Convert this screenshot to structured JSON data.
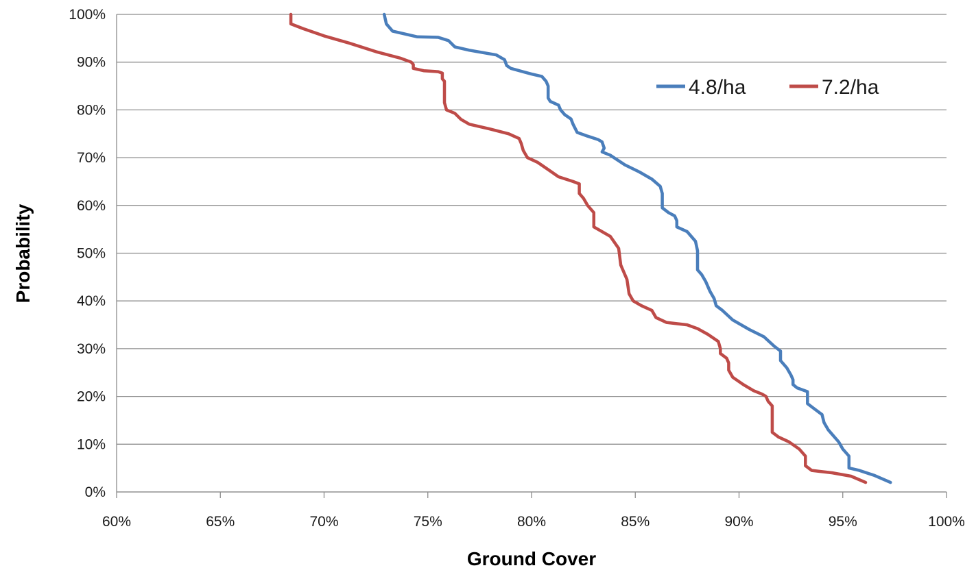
{
  "chart_data": {
    "type": "line",
    "title": "",
    "xlabel": "Ground Cover",
    "ylabel": "Probability",
    "xlim": [
      0.6,
      1.0
    ],
    "ylim": [
      0,
      1.0
    ],
    "x_ticks": [
      0.6,
      0.65,
      0.7,
      0.75,
      0.8,
      0.85,
      0.9,
      0.95,
      1.0
    ],
    "x_tick_labels": [
      "60%",
      "65%",
      "70%",
      "75%",
      "80%",
      "85%",
      "90%",
      "95%",
      "100%"
    ],
    "y_ticks": [
      0,
      0.1,
      0.2,
      0.3,
      0.4,
      0.5,
      0.6,
      0.7,
      0.8,
      0.9,
      1.0
    ],
    "y_tick_labels": [
      "0%",
      "10%",
      "20%",
      "30%",
      "40%",
      "50%",
      "60%",
      "70%",
      "80%",
      "90%",
      "100%"
    ],
    "grid": "horizontal",
    "legend": "top-right",
    "series": [
      {
        "name": "4.8/ha",
        "color": "#4a7ebb",
        "points": [
          [
            0.729,
            1.0
          ],
          [
            0.73,
            0.98
          ],
          [
            0.733,
            0.965
          ],
          [
            0.745,
            0.953
          ],
          [
            0.755,
            0.952
          ],
          [
            0.76,
            0.945
          ],
          [
            0.763,
            0.932
          ],
          [
            0.77,
            0.925
          ],
          [
            0.783,
            0.915
          ],
          [
            0.787,
            0.905
          ],
          [
            0.788,
            0.893
          ],
          [
            0.79,
            0.887
          ],
          [
            0.8,
            0.875
          ],
          [
            0.805,
            0.87
          ],
          [
            0.807,
            0.86
          ],
          [
            0.808,
            0.85
          ],
          [
            0.808,
            0.825
          ],
          [
            0.809,
            0.818
          ],
          [
            0.813,
            0.81
          ],
          [
            0.814,
            0.8
          ],
          [
            0.816,
            0.79
          ],
          [
            0.819,
            0.781
          ],
          [
            0.82,
            0.77
          ],
          [
            0.822,
            0.753
          ],
          [
            0.827,
            0.745
          ],
          [
            0.832,
            0.738
          ],
          [
            0.834,
            0.733
          ],
          [
            0.835,
            0.72
          ],
          [
            0.834,
            0.712
          ],
          [
            0.838,
            0.705
          ],
          [
            0.845,
            0.685
          ],
          [
            0.852,
            0.67
          ],
          [
            0.858,
            0.655
          ],
          [
            0.862,
            0.64
          ],
          [
            0.863,
            0.625
          ],
          [
            0.863,
            0.595
          ],
          [
            0.866,
            0.585
          ],
          [
            0.869,
            0.578
          ],
          [
            0.87,
            0.568
          ],
          [
            0.87,
            0.555
          ],
          [
            0.875,
            0.545
          ],
          [
            0.879,
            0.525
          ],
          [
            0.88,
            0.505
          ],
          [
            0.88,
            0.465
          ],
          [
            0.882,
            0.455
          ],
          [
            0.884,
            0.44
          ],
          [
            0.886,
            0.42
          ],
          [
            0.888,
            0.405
          ],
          [
            0.889,
            0.39
          ],
          [
            0.892,
            0.38
          ],
          [
            0.897,
            0.36
          ],
          [
            0.905,
            0.34
          ],
          [
            0.912,
            0.325
          ],
          [
            0.917,
            0.305
          ],
          [
            0.92,
            0.295
          ],
          [
            0.92,
            0.275
          ],
          [
            0.923,
            0.26
          ],
          [
            0.925,
            0.245
          ],
          [
            0.926,
            0.235
          ],
          [
            0.926,
            0.225
          ],
          [
            0.928,
            0.218
          ],
          [
            0.933,
            0.21
          ],
          [
            0.933,
            0.185
          ],
          [
            0.936,
            0.175
          ],
          [
            0.94,
            0.162
          ],
          [
            0.941,
            0.145
          ],
          [
            0.943,
            0.13
          ],
          [
            0.946,
            0.115
          ],
          [
            0.948,
            0.105
          ],
          [
            0.95,
            0.09
          ],
          [
            0.953,
            0.075
          ],
          [
            0.953,
            0.05
          ],
          [
            0.958,
            0.045
          ],
          [
            0.965,
            0.035
          ],
          [
            0.973,
            0.02
          ]
        ]
      },
      {
        "name": "7.2/ha",
        "color": "#be4b48",
        "points": [
          [
            0.684,
            1.0
          ],
          [
            0.684,
            0.98
          ],
          [
            0.69,
            0.97
          ],
          [
            0.7,
            0.955
          ],
          [
            0.712,
            0.94
          ],
          [
            0.725,
            0.922
          ],
          [
            0.737,
            0.908
          ],
          [
            0.742,
            0.9
          ],
          [
            0.743,
            0.895
          ],
          [
            0.743,
            0.887
          ],
          [
            0.748,
            0.882
          ],
          [
            0.755,
            0.88
          ],
          [
            0.757,
            0.877
          ],
          [
            0.757,
            0.865
          ],
          [
            0.758,
            0.86
          ],
          [
            0.758,
            0.815
          ],
          [
            0.759,
            0.8
          ],
          [
            0.763,
            0.793
          ],
          [
            0.766,
            0.78
          ],
          [
            0.77,
            0.77
          ],
          [
            0.78,
            0.76
          ],
          [
            0.789,
            0.75
          ],
          [
            0.794,
            0.74
          ],
          [
            0.795,
            0.73
          ],
          [
            0.796,
            0.715
          ],
          [
            0.798,
            0.7
          ],
          [
            0.803,
            0.69
          ],
          [
            0.808,
            0.675
          ],
          [
            0.813,
            0.66
          ],
          [
            0.82,
            0.65
          ],
          [
            0.823,
            0.645
          ],
          [
            0.823,
            0.625
          ],
          [
            0.825,
            0.615
          ],
          [
            0.827,
            0.6
          ],
          [
            0.83,
            0.585
          ],
          [
            0.83,
            0.555
          ],
          [
            0.834,
            0.545
          ],
          [
            0.838,
            0.535
          ],
          [
            0.842,
            0.51
          ],
          [
            0.843,
            0.475
          ],
          [
            0.845,
            0.455
          ],
          [
            0.846,
            0.445
          ],
          [
            0.847,
            0.415
          ],
          [
            0.849,
            0.4
          ],
          [
            0.853,
            0.39
          ],
          [
            0.858,
            0.38
          ],
          [
            0.86,
            0.365
          ],
          [
            0.865,
            0.355
          ],
          [
            0.875,
            0.35
          ],
          [
            0.88,
            0.342
          ],
          [
            0.885,
            0.33
          ],
          [
            0.89,
            0.315
          ],
          [
            0.891,
            0.3
          ],
          [
            0.891,
            0.29
          ],
          [
            0.894,
            0.28
          ],
          [
            0.895,
            0.27
          ],
          [
            0.895,
            0.255
          ],
          [
            0.897,
            0.24
          ],
          [
            0.902,
            0.225
          ],
          [
            0.907,
            0.212
          ],
          [
            0.911,
            0.205
          ],
          [
            0.913,
            0.2
          ],
          [
            0.914,
            0.19
          ],
          [
            0.916,
            0.18
          ],
          [
            0.916,
            0.125
          ],
          [
            0.919,
            0.115
          ],
          [
            0.924,
            0.105
          ],
          [
            0.929,
            0.09
          ],
          [
            0.932,
            0.075
          ],
          [
            0.932,
            0.055
          ],
          [
            0.935,
            0.045
          ],
          [
            0.945,
            0.04
          ],
          [
            0.954,
            0.033
          ],
          [
            0.961,
            0.02
          ]
        ]
      }
    ]
  }
}
